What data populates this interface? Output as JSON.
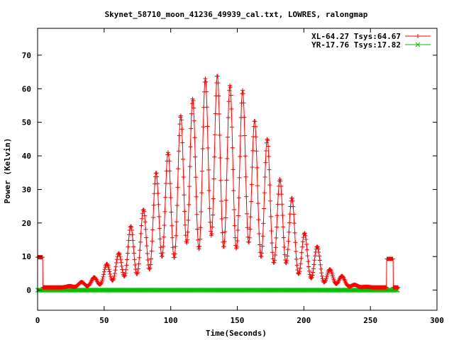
{
  "chart_data": {
    "type": "line",
    "title": "Skynet_58710_moon_41236_49939_cal.txt, LOWRES, ralongmap",
    "xlabel": "Time(Seconds)",
    "ylabel": "Power (Kelvin)",
    "xlim": [
      0,
      300
    ],
    "ylim": [
      -6,
      78
    ],
    "xticks": [
      0,
      50,
      100,
      150,
      200,
      250,
      300
    ],
    "yticks": [
      0,
      10,
      20,
      30,
      40,
      50,
      60,
      70
    ],
    "grid": false,
    "legend_position": "top-right",
    "series": [
      {
        "name": "XL-64.27 Tsys:64.67",
        "color": "#ff0000",
        "marker": "plus",
        "baseline": 0.8,
        "x_range": [
          0,
          271
        ],
        "plateaus": [
          {
            "x0": 0,
            "x1": 4,
            "y": 9.8
          },
          {
            "x0": 262,
            "x1": 267,
            "y": 9.3
          }
        ],
        "peaks": [
          {
            "x": 24,
            "y": 1.2
          },
          {
            "x": 33,
            "y": 2.4
          },
          {
            "x": 42.5,
            "y": 3.8
          },
          {
            "x": 52,
            "y": 7.8
          },
          {
            "x": 61,
            "y": 11
          },
          {
            "x": 70,
            "y": 19
          },
          {
            "x": 79.5,
            "y": 24
          },
          {
            "x": 89,
            "y": 35
          },
          {
            "x": 98,
            "y": 41
          },
          {
            "x": 107.5,
            "y": 52
          },
          {
            "x": 116.5,
            "y": 57
          },
          {
            "x": 126,
            "y": 63
          },
          {
            "x": 135,
            "y": 64
          },
          {
            "x": 144.5,
            "y": 61
          },
          {
            "x": 154,
            "y": 59.5
          },
          {
            "x": 163,
            "y": 50.5
          },
          {
            "x": 172.5,
            "y": 45
          },
          {
            "x": 182,
            "y": 33
          },
          {
            "x": 191,
            "y": 27.5
          },
          {
            "x": 200.5,
            "y": 17
          },
          {
            "x": 210,
            "y": 13
          },
          {
            "x": 219.5,
            "y": 6.2
          },
          {
            "x": 228.5,
            "y": 4.2
          },
          {
            "x": 238,
            "y": 1.6
          },
          {
            "x": 247,
            "y": 1
          }
        ]
      },
      {
        "name": "YR-17.76 Tsys:17.82",
        "color": "#00c000",
        "marker": "cross",
        "baseline": 0,
        "x_range": [
          0,
          271
        ]
      }
    ]
  }
}
